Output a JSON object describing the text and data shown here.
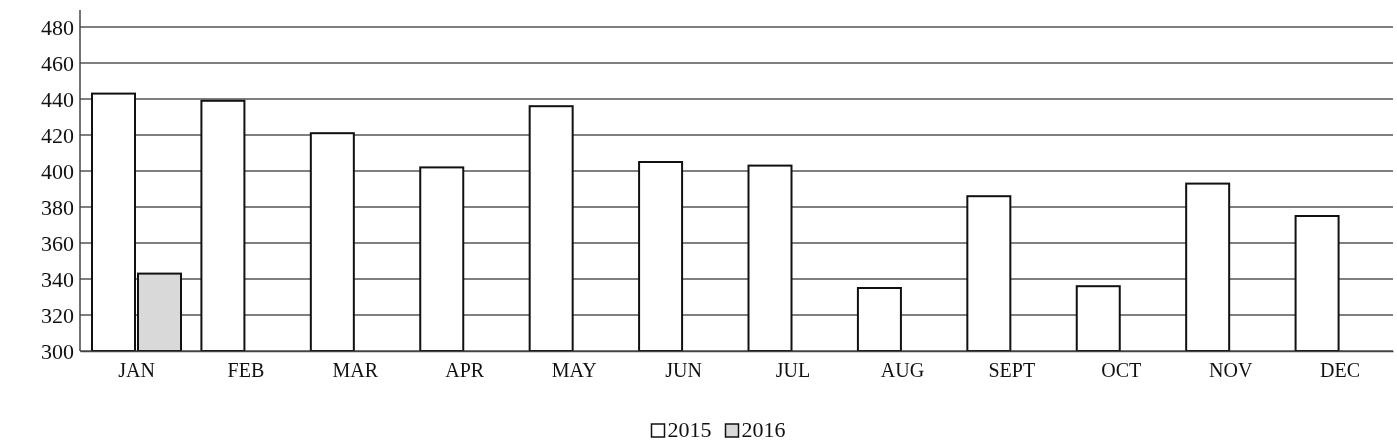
{
  "chart_data": {
    "type": "bar",
    "categories": [
      "JAN",
      "FEB",
      "MAR",
      "APR",
      "MAY",
      "JUN",
      "JUL",
      "AUG",
      "SEPT",
      "OCT",
      "NOV",
      "DEC"
    ],
    "series": [
      {
        "name": "2015",
        "color": "#ffffff",
        "values": [
          443,
          439,
          421,
          402,
          436,
          405,
          403,
          335,
          386,
          336,
          393,
          375
        ]
      },
      {
        "name": "2016",
        "color": "#d9d9d9",
        "values": [
          343,
          null,
          null,
          null,
          null,
          null,
          null,
          null,
          null,
          null,
          null,
          null
        ]
      }
    ],
    "ylim": [
      300,
      480
    ],
    "yticks": [
      300,
      320,
      340,
      360,
      380,
      400,
      420,
      440,
      460,
      480
    ],
    "grid": "y",
    "legend": "bottom"
  }
}
